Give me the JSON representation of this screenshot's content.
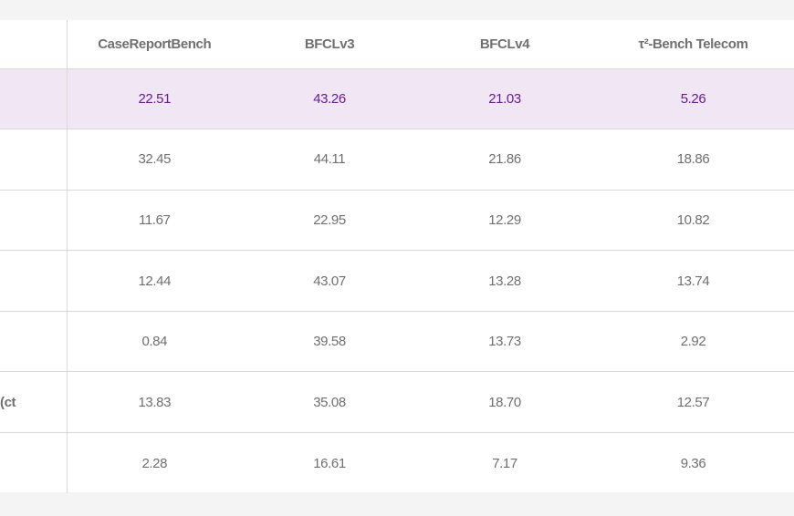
{
  "table": {
    "columns": [
      "CaseReportBench",
      "BFCLv3",
      "BFCLv4",
      "τ²-Bench Telecom"
    ],
    "rows": [
      {
        "label": "",
        "highlight": true,
        "values": [
          "22.51",
          "43.26",
          "21.03",
          "5.26"
        ]
      },
      {
        "label": "",
        "highlight": false,
        "values": [
          "32.45",
          "44.11",
          "21.86",
          "18.86"
        ]
      },
      {
        "label": "",
        "highlight": false,
        "values": [
          "11.67",
          "22.95",
          "12.29",
          "10.82"
        ]
      },
      {
        "label": "",
        "highlight": false,
        "values": [
          "12.44",
          "43.07",
          "13.28",
          "13.74"
        ]
      },
      {
        "label": "",
        "highlight": false,
        "values": [
          "0.84",
          "39.58",
          "13.73",
          "2.92"
        ]
      },
      {
        "label": "ct)",
        "highlight": false,
        "values": [
          "13.83",
          "35.08",
          "18.70",
          "12.57"
        ]
      },
      {
        "label": "",
        "highlight": false,
        "values": [
          "2.28",
          "16.61",
          "7.17",
          "9.36"
        ]
      }
    ]
  },
  "colors": {
    "page_background": "#f4f4f4",
    "highlight_row_background": "#f1e6f4",
    "highlight_text": "#6a1b9a",
    "body_text": "#6f6f6f",
    "border": "#d9d9d9"
  }
}
